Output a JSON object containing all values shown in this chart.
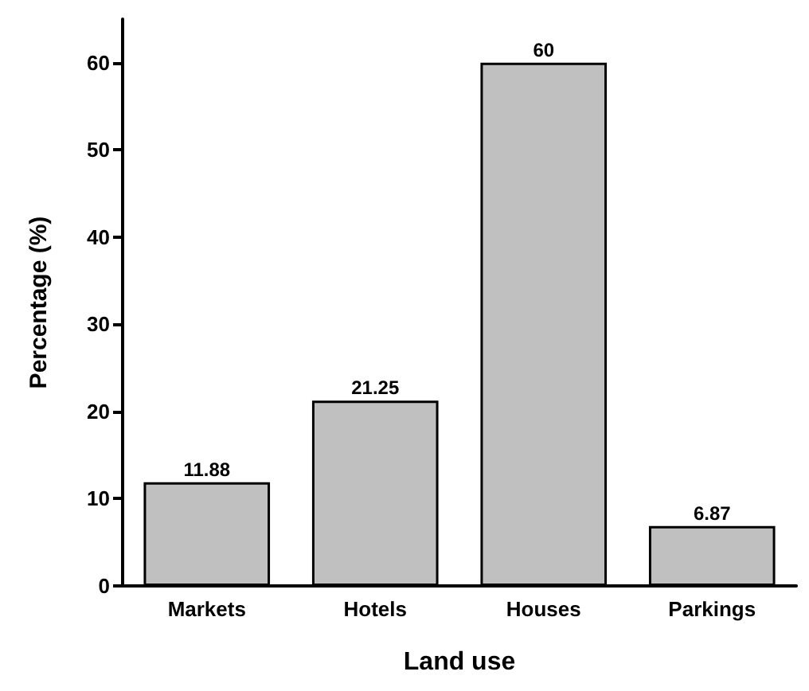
{
  "chart_data": {
    "type": "bar",
    "xlabel": "Land use",
    "ylabel": "Percentage (%)",
    "categories": [
      "Markets",
      "Hotels",
      "Houses",
      "Parkings"
    ],
    "values": [
      11.88,
      21.25,
      60,
      6.87
    ],
    "color": "#c0c0c0",
    "ylim": [
      0,
      65
    ],
    "yticks": [
      0,
      10,
      20,
      30,
      40,
      50,
      60
    ],
    "grid": false,
    "data_labels": true
  }
}
